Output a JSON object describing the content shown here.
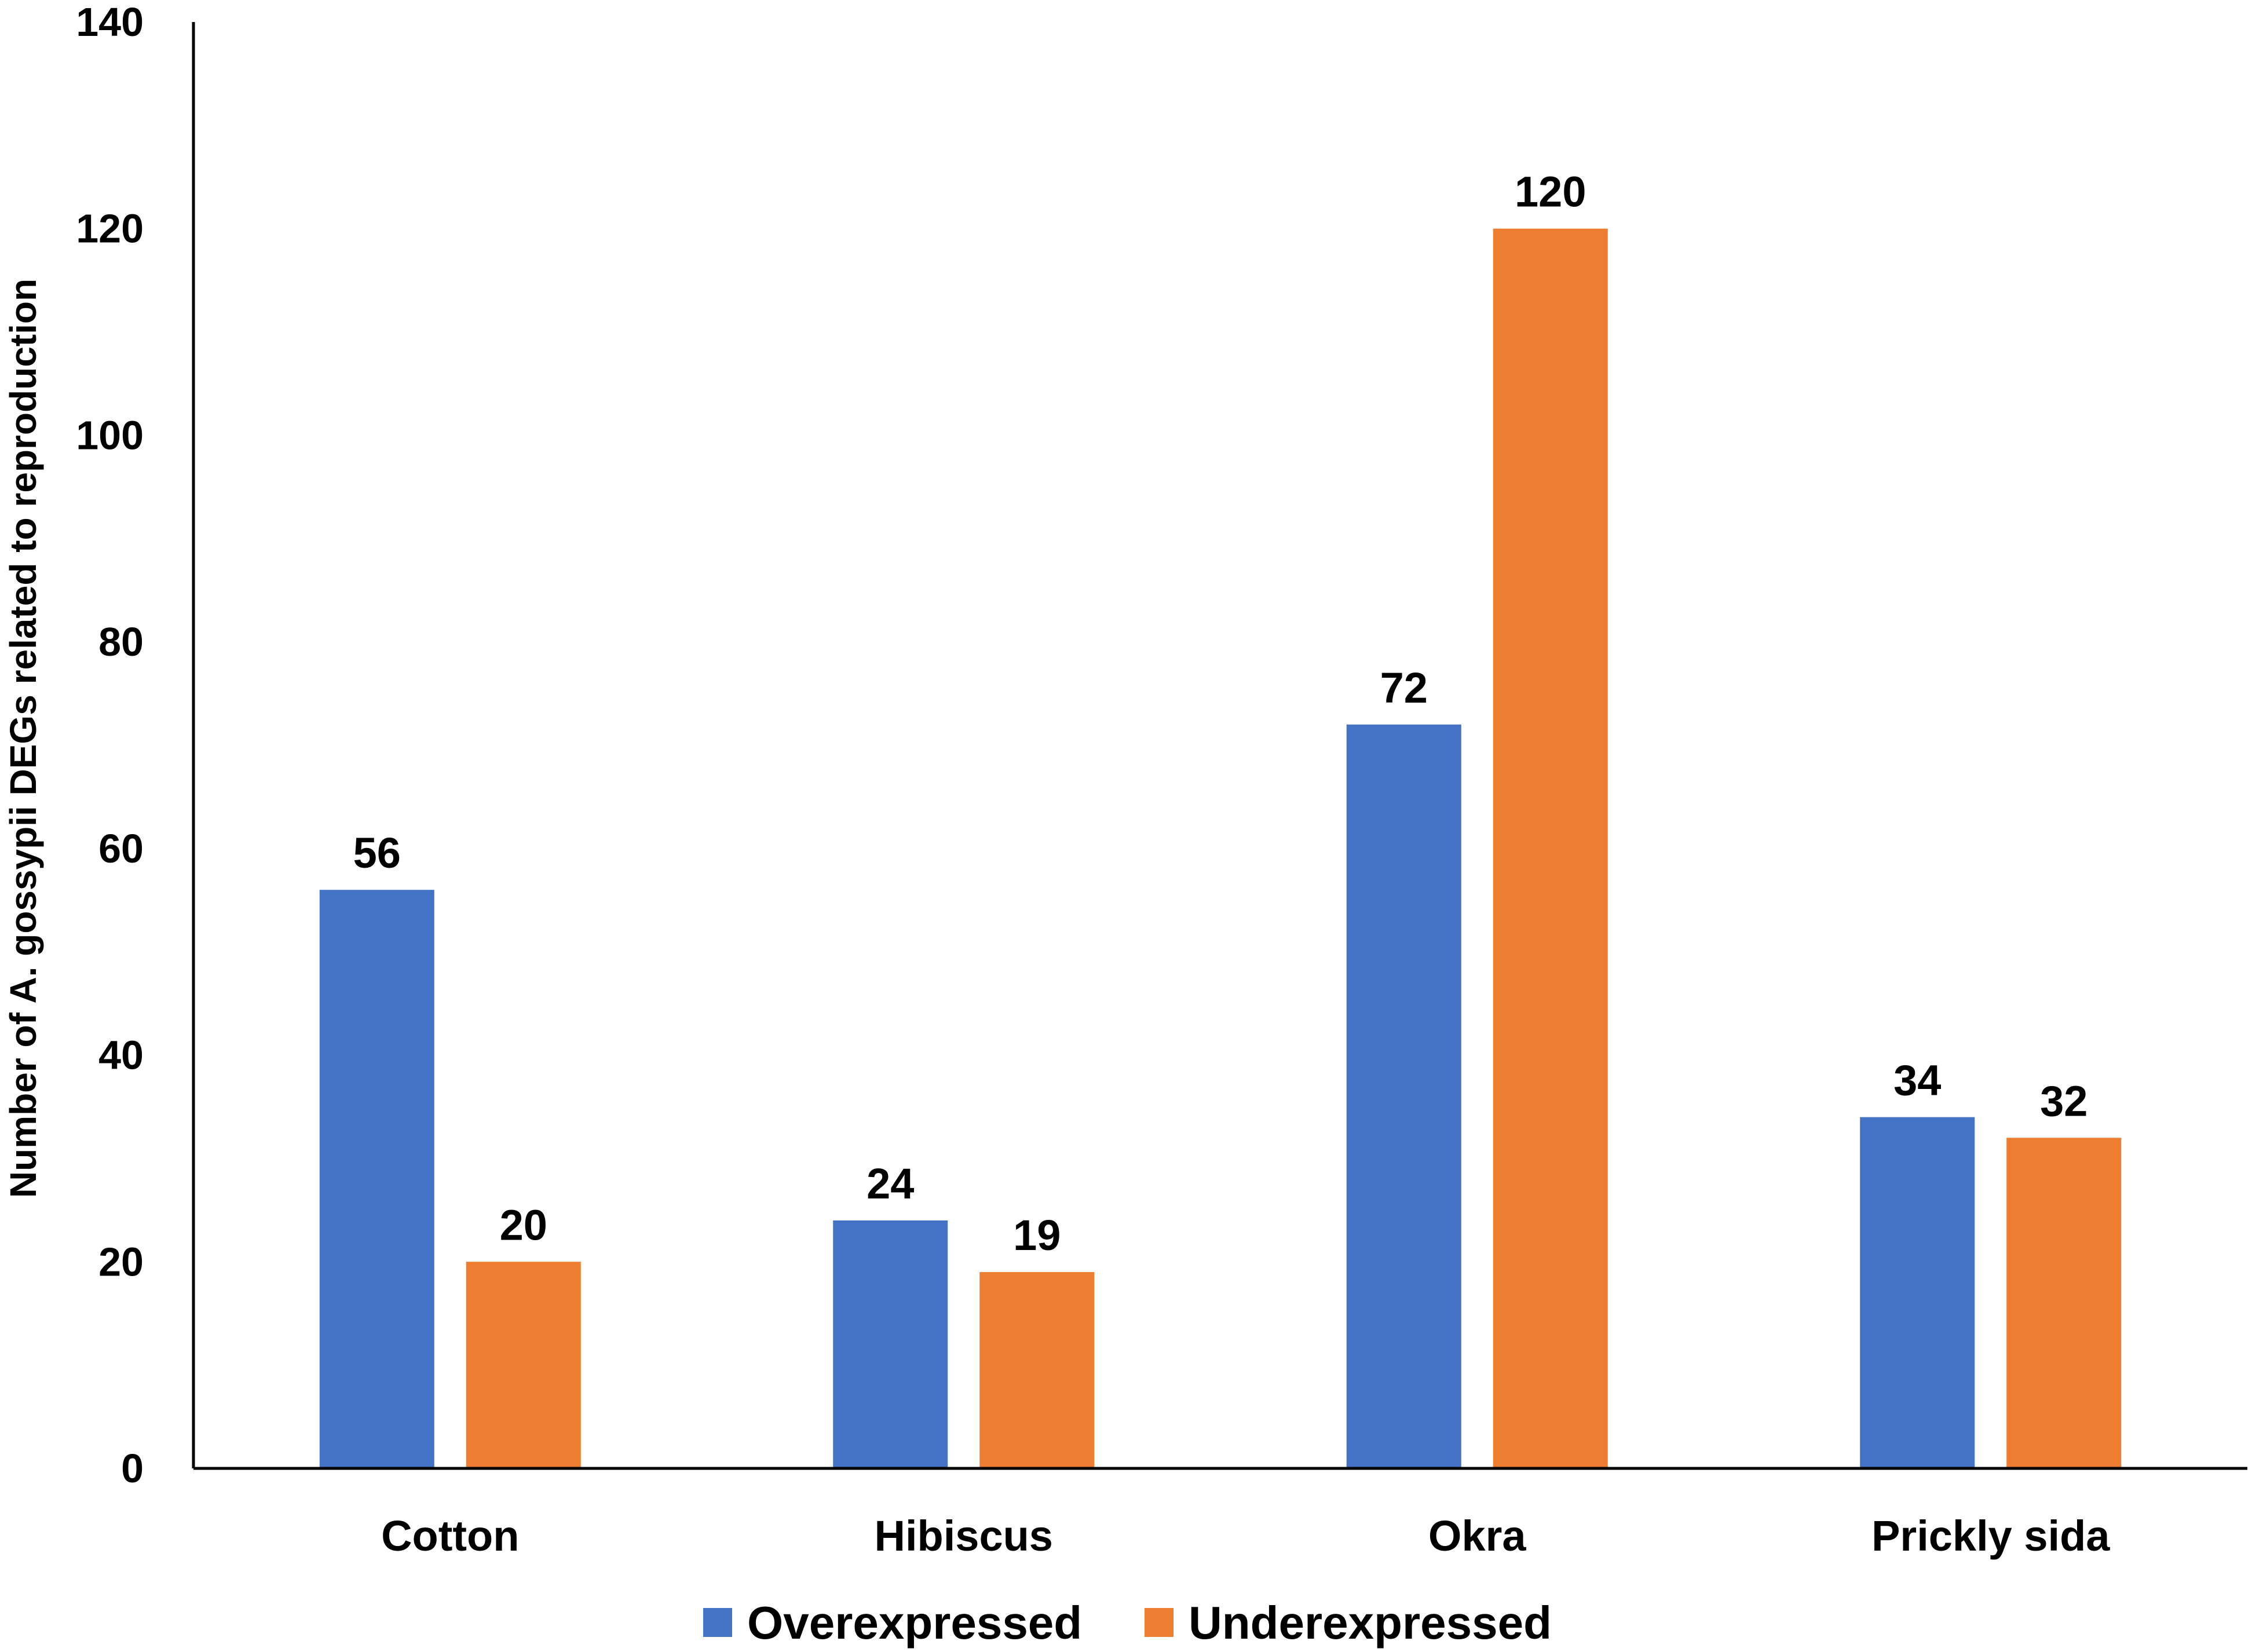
{
  "chart_data": {
    "type": "bar",
    "title": "",
    "xlabel": "",
    "ylabel": "Number of A. gossypii DEGs related to reproduction",
    "categories": [
      "Cotton",
      "Hibiscus",
      "Okra",
      "Prickly sida"
    ],
    "series": [
      {
        "name": "Overexpressed",
        "color": "#4472C4",
        "values": [
          56,
          24,
          72,
          34
        ]
      },
      {
        "name": "Underexpressed",
        "color": "#ED7D31",
        "values": [
          20,
          19,
          120,
          32
        ]
      }
    ],
    "ylim": [
      0,
      140
    ],
    "yticks": [
      0,
      20,
      40,
      60,
      80,
      100,
      120,
      140
    ],
    "ytick_labels": [
      "0",
      "20",
      "40",
      "60",
      "80",
      "100",
      "120",
      "140"
    ],
    "value_labels": true,
    "grid": false,
    "legend_position": "bottom"
  }
}
